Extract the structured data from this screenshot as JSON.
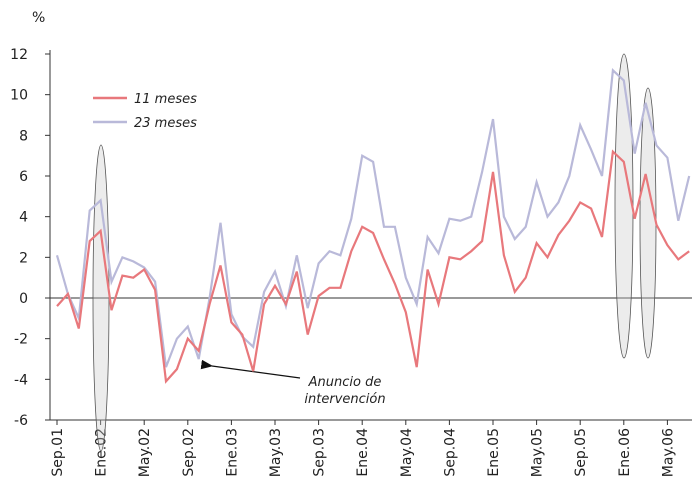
{
  "chart_data": {
    "type": "line",
    "y_label": "%",
    "categories": [
      "Sep.01",
      null,
      null,
      null,
      "Ene.02",
      null,
      null,
      null,
      "May.02",
      null,
      null,
      null,
      "Sep.02",
      null,
      null,
      null,
      "Ene.03",
      null,
      null,
      null,
      "May.03",
      null,
      null,
      null,
      "Sep.03",
      null,
      null,
      null,
      "Ene.04",
      null,
      null,
      null,
      "May.04",
      null,
      null,
      null,
      "Sep.04",
      null,
      null,
      null,
      "Ene.05",
      null,
      null,
      null,
      "May.05",
      null,
      null,
      null,
      "Sep.05",
      null,
      null,
      null,
      "Ene.06",
      null,
      null,
      null,
      "May.06",
      null,
      null
    ],
    "series": [
      {
        "name": "11 meses",
        "color": "#e8787c",
        "values": [
          -0.4,
          0.2,
          -1.5,
          2.8,
          3.3,
          -0.6,
          1.1,
          1.0,
          1.4,
          0.4,
          -4.1,
          -3.5,
          -2.0,
          -2.6,
          -0.3,
          1.6,
          -1.2,
          -1.8,
          -3.6,
          -0.3,
          0.6,
          -0.3,
          1.3,
          -1.8,
          0.1,
          0.5,
          0.5,
          2.3,
          3.5,
          3.2,
          1.9,
          0.7,
          -0.7,
          -3.4,
          1.4,
          -0.3,
          2.0,
          1.9,
          2.3,
          2.8,
          6.2,
          2.1,
          0.3,
          1.0,
          2.7,
          2.0,
          3.1,
          3.8,
          4.7,
          4.4,
          3.0,
          7.2,
          6.7,
          3.9,
          6.1,
          3.6,
          2.6,
          1.9,
          2.3
        ]
      },
      {
        "name": "23 meses",
        "color": "#b9b9d9",
        "values": [
          2.1,
          0.2,
          -1.0,
          4.3,
          4.8,
          0.8,
          2.0,
          1.8,
          1.5,
          0.8,
          -3.4,
          -2.0,
          -1.4,
          -3.0,
          0.0,
          3.7,
          -0.8,
          -1.9,
          -2.4,
          0.3,
          1.3,
          -0.4,
          2.1,
          -0.5,
          1.7,
          2.3,
          2.1,
          3.9,
          7.0,
          6.7,
          3.5,
          3.5,
          1.0,
          -0.3,
          3.0,
          2.2,
          3.9,
          3.8,
          4.0,
          6.2,
          8.8,
          4.0,
          2.9,
          3.5,
          5.7,
          4.0,
          4.7,
          6.0,
          8.5,
          7.3,
          6.0,
          11.2,
          10.7,
          7.1,
          9.6,
          7.5,
          6.9,
          3.8,
          6.0
        ]
      }
    ],
    "annotation": [
      "Anuncio de",
      "intervención"
    ],
    "ylim": [
      -6,
      12
    ],
    "yticks": [
      -6,
      -4,
      -2,
      0,
      2,
      4,
      6,
      8,
      10,
      12
    ],
    "grid": false
  }
}
